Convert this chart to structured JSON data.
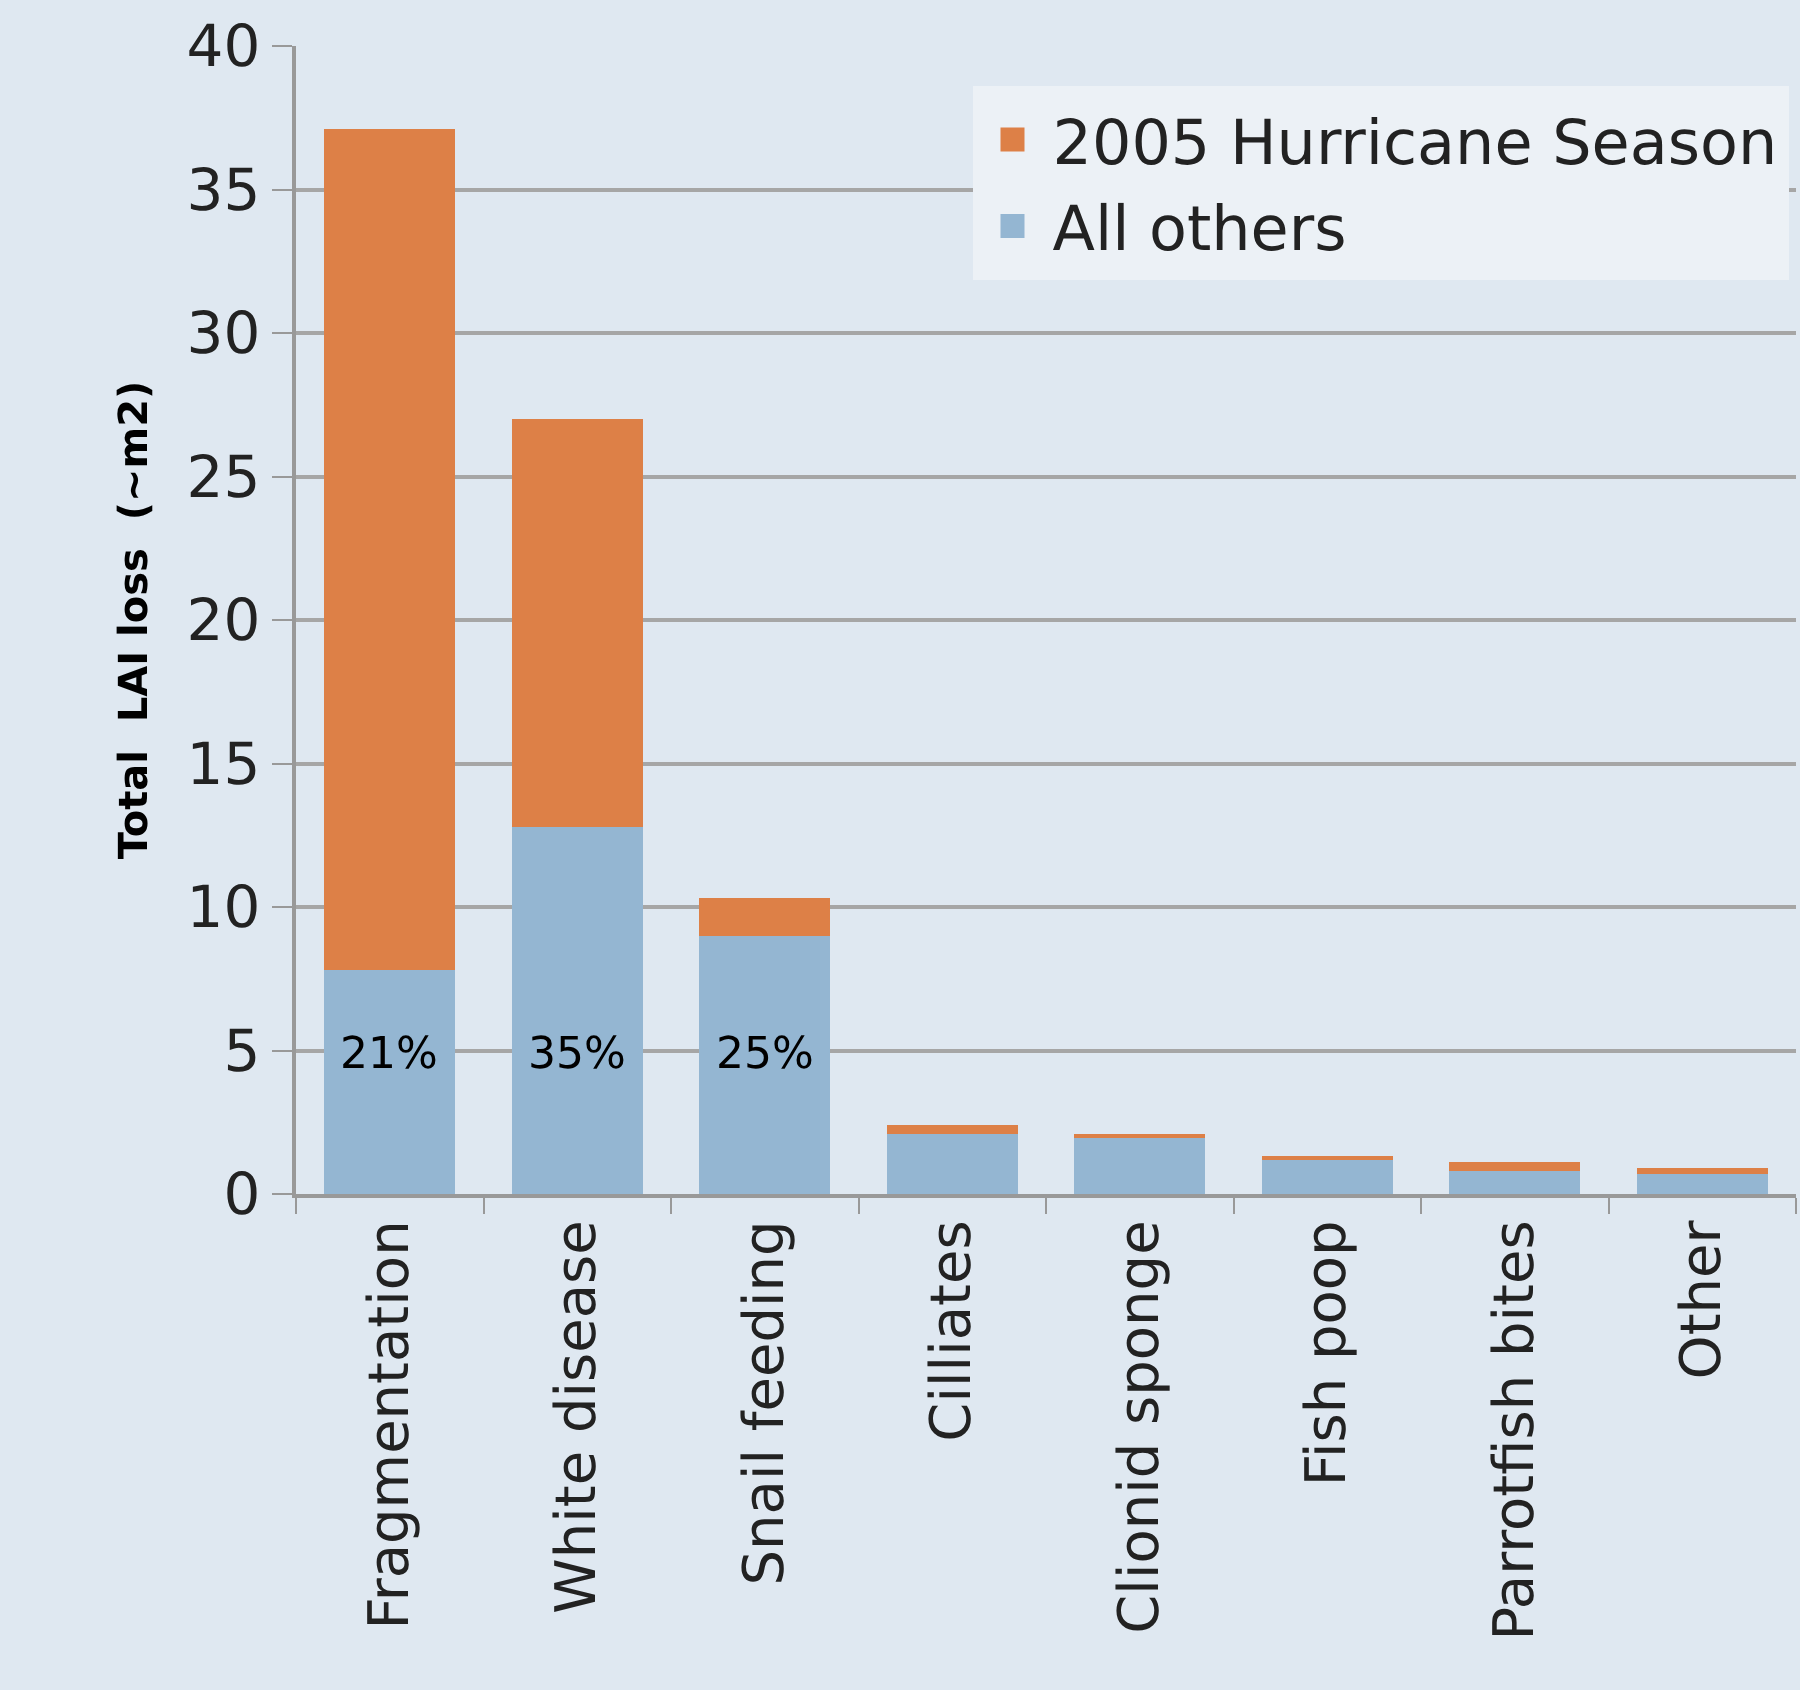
{
  "chart_data": {
    "type": "bar",
    "stacked": true,
    "ylabel": "Total  LAI loss  (~m2)",
    "categories": [
      "Fragmentation",
      "White disease",
      "Snail feeding",
      "Cilliates",
      "Clionid sponge",
      "Fish poop",
      "Parrotfish bites",
      "Other"
    ],
    "series": [
      {
        "name": "All others",
        "color": "#94b6d2",
        "values": [
          7.8,
          12.8,
          9.0,
          2.1,
          2.0,
          1.2,
          0.8,
          0.7
        ]
      },
      {
        "name": "2005 Hurricane Season",
        "color": "#dd8047",
        "values": [
          29.3,
          14.2,
          1.3,
          0.3,
          0.1,
          0.1,
          0.3,
          0.2
        ]
      }
    ],
    "annotations": [
      "21%",
      "35%",
      "25%"
    ],
    "ylim": [
      0,
      40
    ],
    "yticks": [
      0,
      5,
      10,
      15,
      20,
      25,
      30,
      35,
      40
    ],
    "grid": "y",
    "legend": "top right"
  }
}
